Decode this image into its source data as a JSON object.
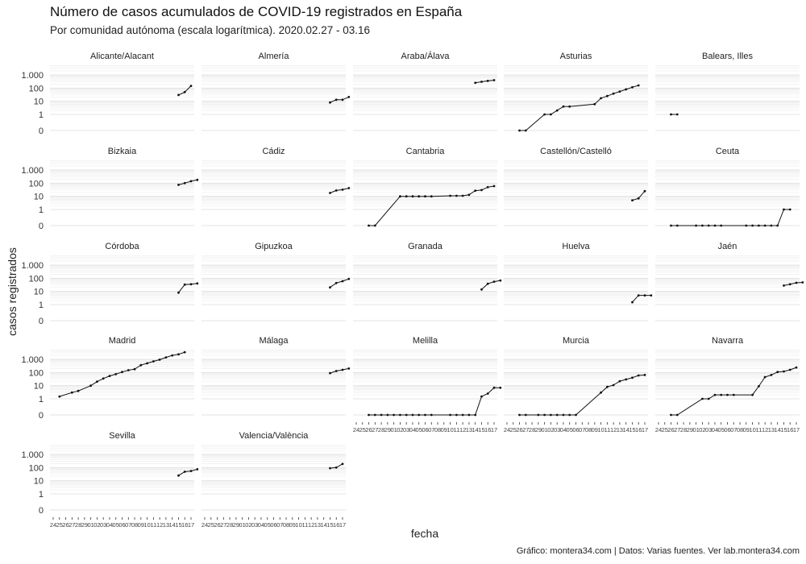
{
  "chart_data": {
    "type": "line",
    "title": "Número de casos acumulados de COVID-19 registrados en España",
    "subtitle": "Por comunidad autónoma (escala logarítmica). 2020.02.27 - 03.16",
    "xlabel": "fecha",
    "ylabel": "casos registrados",
    "caption": "Gráfico: montera34.com | Datos: Varias fuentes. Ver lab.montera34.com",
    "y_scale": "log",
    "y_ticks": [
      {
        "value": 0,
        "label": "0"
      },
      {
        "value": 1,
        "label": "1"
      },
      {
        "value": 10,
        "label": "10"
      },
      {
        "value": 100,
        "label": "100"
      },
      {
        "value": 1000,
        "label": "1.000"
      }
    ],
    "x_ticks": [
      "24",
      "25",
      "26",
      "27",
      "28",
      "29",
      "01",
      "02",
      "03",
      "04",
      "05",
      "06",
      "07",
      "08",
      "09",
      "10",
      "11",
      "12",
      "13",
      "14",
      "15",
      "16",
      "17"
    ],
    "x_start": "2020-02-24",
    "grid": true,
    "facets": [
      {
        "name": "Alicante/Alacant",
        "points": [
          [
            20,
            30
          ],
          [
            21,
            50
          ],
          [
            22,
            147
          ]
        ]
      },
      {
        "name": "Almería",
        "points": [
          [
            20,
            8
          ],
          [
            21,
            13
          ],
          [
            22,
            13
          ],
          [
            23,
            21
          ]
        ]
      },
      {
        "name": "Araba/Álava",
        "points": [
          [
            19,
            250
          ],
          [
            20,
            300
          ],
          [
            21,
            350
          ],
          [
            22,
            400
          ]
        ]
      },
      {
        "name": "Asturias",
        "points": [
          [
            2,
            0
          ],
          [
            3,
            0
          ],
          [
            6,
            1
          ],
          [
            7,
            1
          ],
          [
            8,
            2
          ],
          [
            9,
            4
          ],
          [
            10,
            4
          ],
          [
            14,
            6
          ],
          [
            15,
            17
          ],
          [
            16,
            25
          ],
          [
            17,
            38
          ],
          [
            18,
            55
          ],
          [
            19,
            80
          ],
          [
            20,
            115
          ],
          [
            21,
            160
          ]
        ]
      },
      {
        "name": "Balears, Illes",
        "points": [
          [
            2,
            1
          ],
          [
            3,
            1
          ]
        ]
      },
      {
        "name": "Bizkaia",
        "points": [
          [
            20,
            75
          ],
          [
            21,
            100
          ],
          [
            22,
            140
          ],
          [
            23,
            180
          ]
        ]
      },
      {
        "name": "Cádiz",
        "points": [
          [
            20,
            18
          ],
          [
            21,
            28
          ],
          [
            22,
            32
          ],
          [
            23,
            42
          ]
        ]
      },
      {
        "name": "Cantabria",
        "points": [
          [
            2,
            0
          ],
          [
            3,
            0
          ],
          [
            7,
            10
          ],
          [
            8,
            10
          ],
          [
            9,
            10
          ],
          [
            10,
            10
          ],
          [
            11,
            10
          ],
          [
            12,
            10
          ],
          [
            15,
            11
          ],
          [
            16,
            11
          ],
          [
            17,
            11
          ],
          [
            18,
            13
          ],
          [
            19,
            27
          ],
          [
            20,
            30
          ],
          [
            21,
            50
          ],
          [
            22,
            60
          ]
        ]
      },
      {
        "name": "Castellón/Castelló",
        "points": [
          [
            20,
            5
          ],
          [
            21,
            7
          ],
          [
            22,
            25
          ]
        ]
      },
      {
        "name": "Ceuta",
        "points": [
          [
            2,
            0
          ],
          [
            3,
            0
          ],
          [
            6,
            0
          ],
          [
            7,
            0
          ],
          [
            8,
            0
          ],
          [
            9,
            0
          ],
          [
            10,
            0
          ],
          [
            14,
            0
          ],
          [
            15,
            0
          ],
          [
            16,
            0
          ],
          [
            17,
            0
          ],
          [
            18,
            0
          ],
          [
            19,
            0
          ],
          [
            20,
            1
          ],
          [
            21,
            1
          ]
        ]
      },
      {
        "name": "Córdoba",
        "points": [
          [
            20,
            8
          ],
          [
            21,
            33
          ],
          [
            22,
            35
          ],
          [
            23,
            40
          ]
        ]
      },
      {
        "name": "Gipuzkoa",
        "points": [
          [
            20,
            20
          ],
          [
            21,
            43
          ],
          [
            22,
            60
          ],
          [
            23,
            90
          ]
        ]
      },
      {
        "name": "Granada",
        "points": [
          [
            20,
            14
          ],
          [
            21,
            38
          ],
          [
            22,
            55
          ],
          [
            23,
            68
          ]
        ]
      },
      {
        "name": "Huelva",
        "points": [
          [
            20,
            1.5
          ],
          [
            21,
            5
          ],
          [
            22,
            5
          ],
          [
            23,
            5
          ]
        ]
      },
      {
        "name": "Jaén",
        "points": [
          [
            20,
            28
          ],
          [
            21,
            35
          ],
          [
            22,
            45
          ],
          [
            23,
            48
          ]
        ]
      },
      {
        "name": "Madrid",
        "points": [
          [
            1,
            1.5
          ],
          [
            3,
            3
          ],
          [
            4,
            4
          ],
          [
            6,
            10
          ],
          [
            7,
            20
          ],
          [
            8,
            35
          ],
          [
            9,
            55
          ],
          [
            10,
            75
          ],
          [
            11,
            110
          ],
          [
            12,
            150
          ],
          [
            13,
            180
          ],
          [
            14,
            360
          ],
          [
            15,
            500
          ],
          [
            16,
            700
          ],
          [
            17,
            950
          ],
          [
            18,
            1400
          ],
          [
            19,
            2000
          ],
          [
            20,
            2400
          ],
          [
            21,
            3500
          ]
        ]
      },
      {
        "name": "Málaga",
        "points": [
          [
            20,
            90
          ],
          [
            21,
            130
          ],
          [
            22,
            160
          ],
          [
            23,
            200
          ]
        ]
      },
      {
        "name": "Melilla",
        "points": [
          [
            2,
            0
          ],
          [
            3,
            0
          ],
          [
            4,
            0
          ],
          [
            5,
            0
          ],
          [
            6,
            0
          ],
          [
            7,
            0
          ],
          [
            8,
            0
          ],
          [
            9,
            0
          ],
          [
            10,
            0
          ],
          [
            11,
            0
          ],
          [
            12,
            0
          ],
          [
            15,
            0
          ],
          [
            16,
            0
          ],
          [
            17,
            0
          ],
          [
            18,
            0
          ],
          [
            19,
            0
          ],
          [
            20,
            1.5
          ],
          [
            21,
            2.5
          ],
          [
            22,
            7
          ],
          [
            23,
            7
          ]
        ]
      },
      {
        "name": "Murcia",
        "points": [
          [
            2,
            0
          ],
          [
            3,
            0
          ],
          [
            5,
            0
          ],
          [
            6,
            0
          ],
          [
            7,
            0
          ],
          [
            8,
            0
          ],
          [
            9,
            0
          ],
          [
            10,
            0
          ],
          [
            11,
            0
          ],
          [
            15,
            3
          ],
          [
            16,
            8
          ],
          [
            17,
            11
          ],
          [
            18,
            22
          ],
          [
            19,
            30
          ],
          [
            20,
            40
          ],
          [
            21,
            60
          ],
          [
            22,
            65
          ]
        ]
      },
      {
        "name": "Navarra",
        "points": [
          [
            2,
            0
          ],
          [
            3,
            0
          ],
          [
            7,
            1
          ],
          [
            8,
            1
          ],
          [
            9,
            2
          ],
          [
            10,
            2
          ],
          [
            11,
            2
          ],
          [
            12,
            2
          ],
          [
            15,
            2
          ],
          [
            16,
            9
          ],
          [
            17,
            45
          ],
          [
            18,
            65
          ],
          [
            19,
            110
          ],
          [
            20,
            120
          ],
          [
            21,
            160
          ],
          [
            22,
            240
          ]
        ]
      },
      {
        "name": "Sevilla",
        "points": [
          [
            20,
            25
          ],
          [
            21,
            48
          ],
          [
            22,
            55
          ],
          [
            23,
            75
          ]
        ]
      },
      {
        "name": "Valencia/València",
        "points": [
          [
            20,
            90
          ],
          [
            21,
            100
          ],
          [
            22,
            190
          ]
        ]
      }
    ]
  }
}
